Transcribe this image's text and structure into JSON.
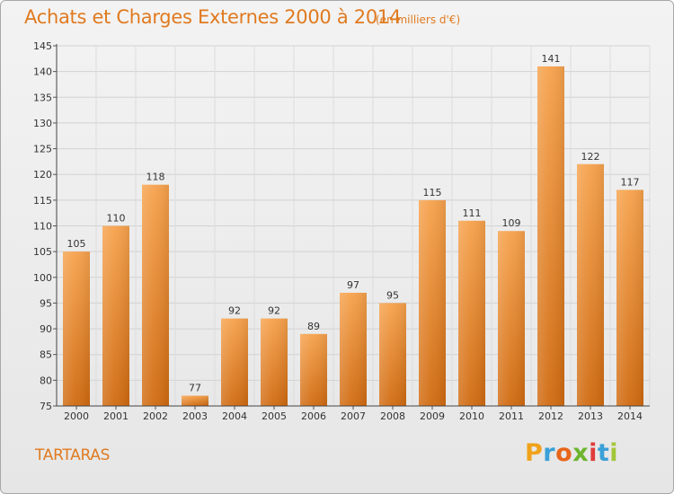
{
  "title": "Achats et Charges Externes 2000 à 2014",
  "subtitle": "(en milliers d'€)",
  "commune": "TARTARAS",
  "logo": {
    "letters": [
      "P",
      "r",
      "o",
      "x",
      "i",
      "t",
      "i"
    ],
    "colors": [
      "#f1a21b",
      "#3aa0d8",
      "#e8651a",
      "#6cb52d",
      "#e03c3c",
      "#3aa0d8",
      "#a4c639"
    ]
  },
  "colors": {
    "accent": "#e07a1f",
    "bar_top": "#f6a24c",
    "bar_bottom": "#d06a10"
  },
  "chart_data": {
    "type": "bar",
    "categories": [
      "2000",
      "2001",
      "2002",
      "2003",
      "2004",
      "2005",
      "2006",
      "2007",
      "2008",
      "2009",
      "2010",
      "2011",
      "2012",
      "2013",
      "2014"
    ],
    "values": [
      105,
      110,
      118,
      77,
      92,
      92,
      89,
      97,
      95,
      115,
      111,
      109,
      141,
      122,
      117
    ],
    "ylim": [
      75,
      145
    ],
    "yticks": [
      75,
      80,
      85,
      90,
      95,
      100,
      105,
      110,
      115,
      120,
      125,
      130,
      135,
      140,
      145
    ],
    "grid": true
  }
}
